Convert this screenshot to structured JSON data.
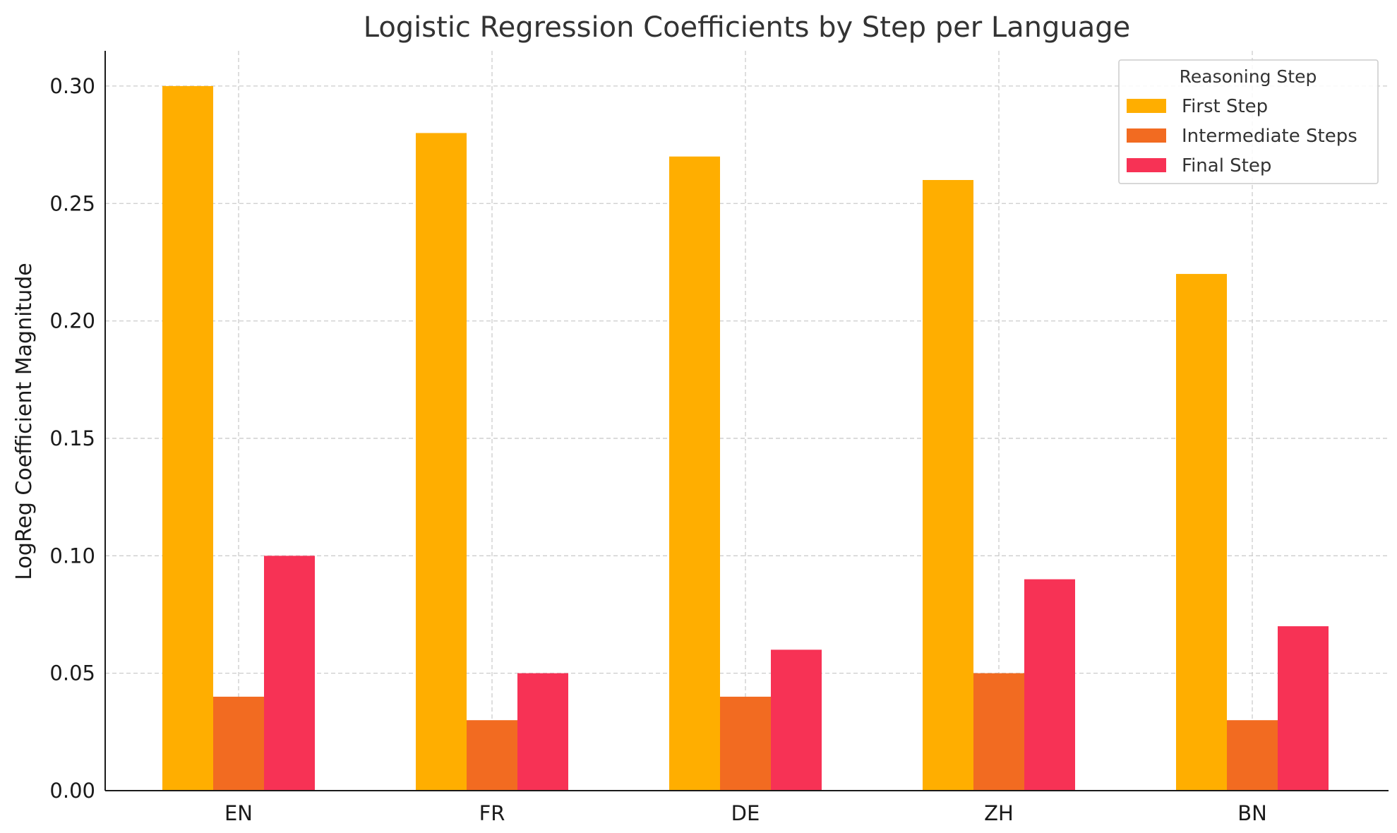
{
  "chart_data": {
    "type": "bar",
    "title": "Logistic Regression Coefficients by Step per Language",
    "xlabel": "",
    "ylabel": "LogReg Coefficient Magnitude",
    "categories": [
      "EN",
      "FR",
      "DE",
      "ZH",
      "BN"
    ],
    "series": [
      {
        "name": "First Step",
        "color": "#FFAE00",
        "values": [
          0.3,
          0.28,
          0.27,
          0.26,
          0.22
        ]
      },
      {
        "name": "Intermediate Steps",
        "color": "#F26B21",
        "values": [
          0.04,
          0.03,
          0.04,
          0.05,
          0.03
        ]
      },
      {
        "name": "Final Step",
        "color": "#F73255",
        "values": [
          0.1,
          0.05,
          0.06,
          0.09,
          0.07
        ]
      }
    ],
    "ylim": [
      0,
      0.315
    ],
    "yticks": [
      "0.00",
      "0.05",
      "0.10",
      "0.15",
      "0.20",
      "0.25",
      "0.30"
    ],
    "grid": true,
    "legend": {
      "title": "Reasoning Step",
      "position": "top-right"
    }
  }
}
